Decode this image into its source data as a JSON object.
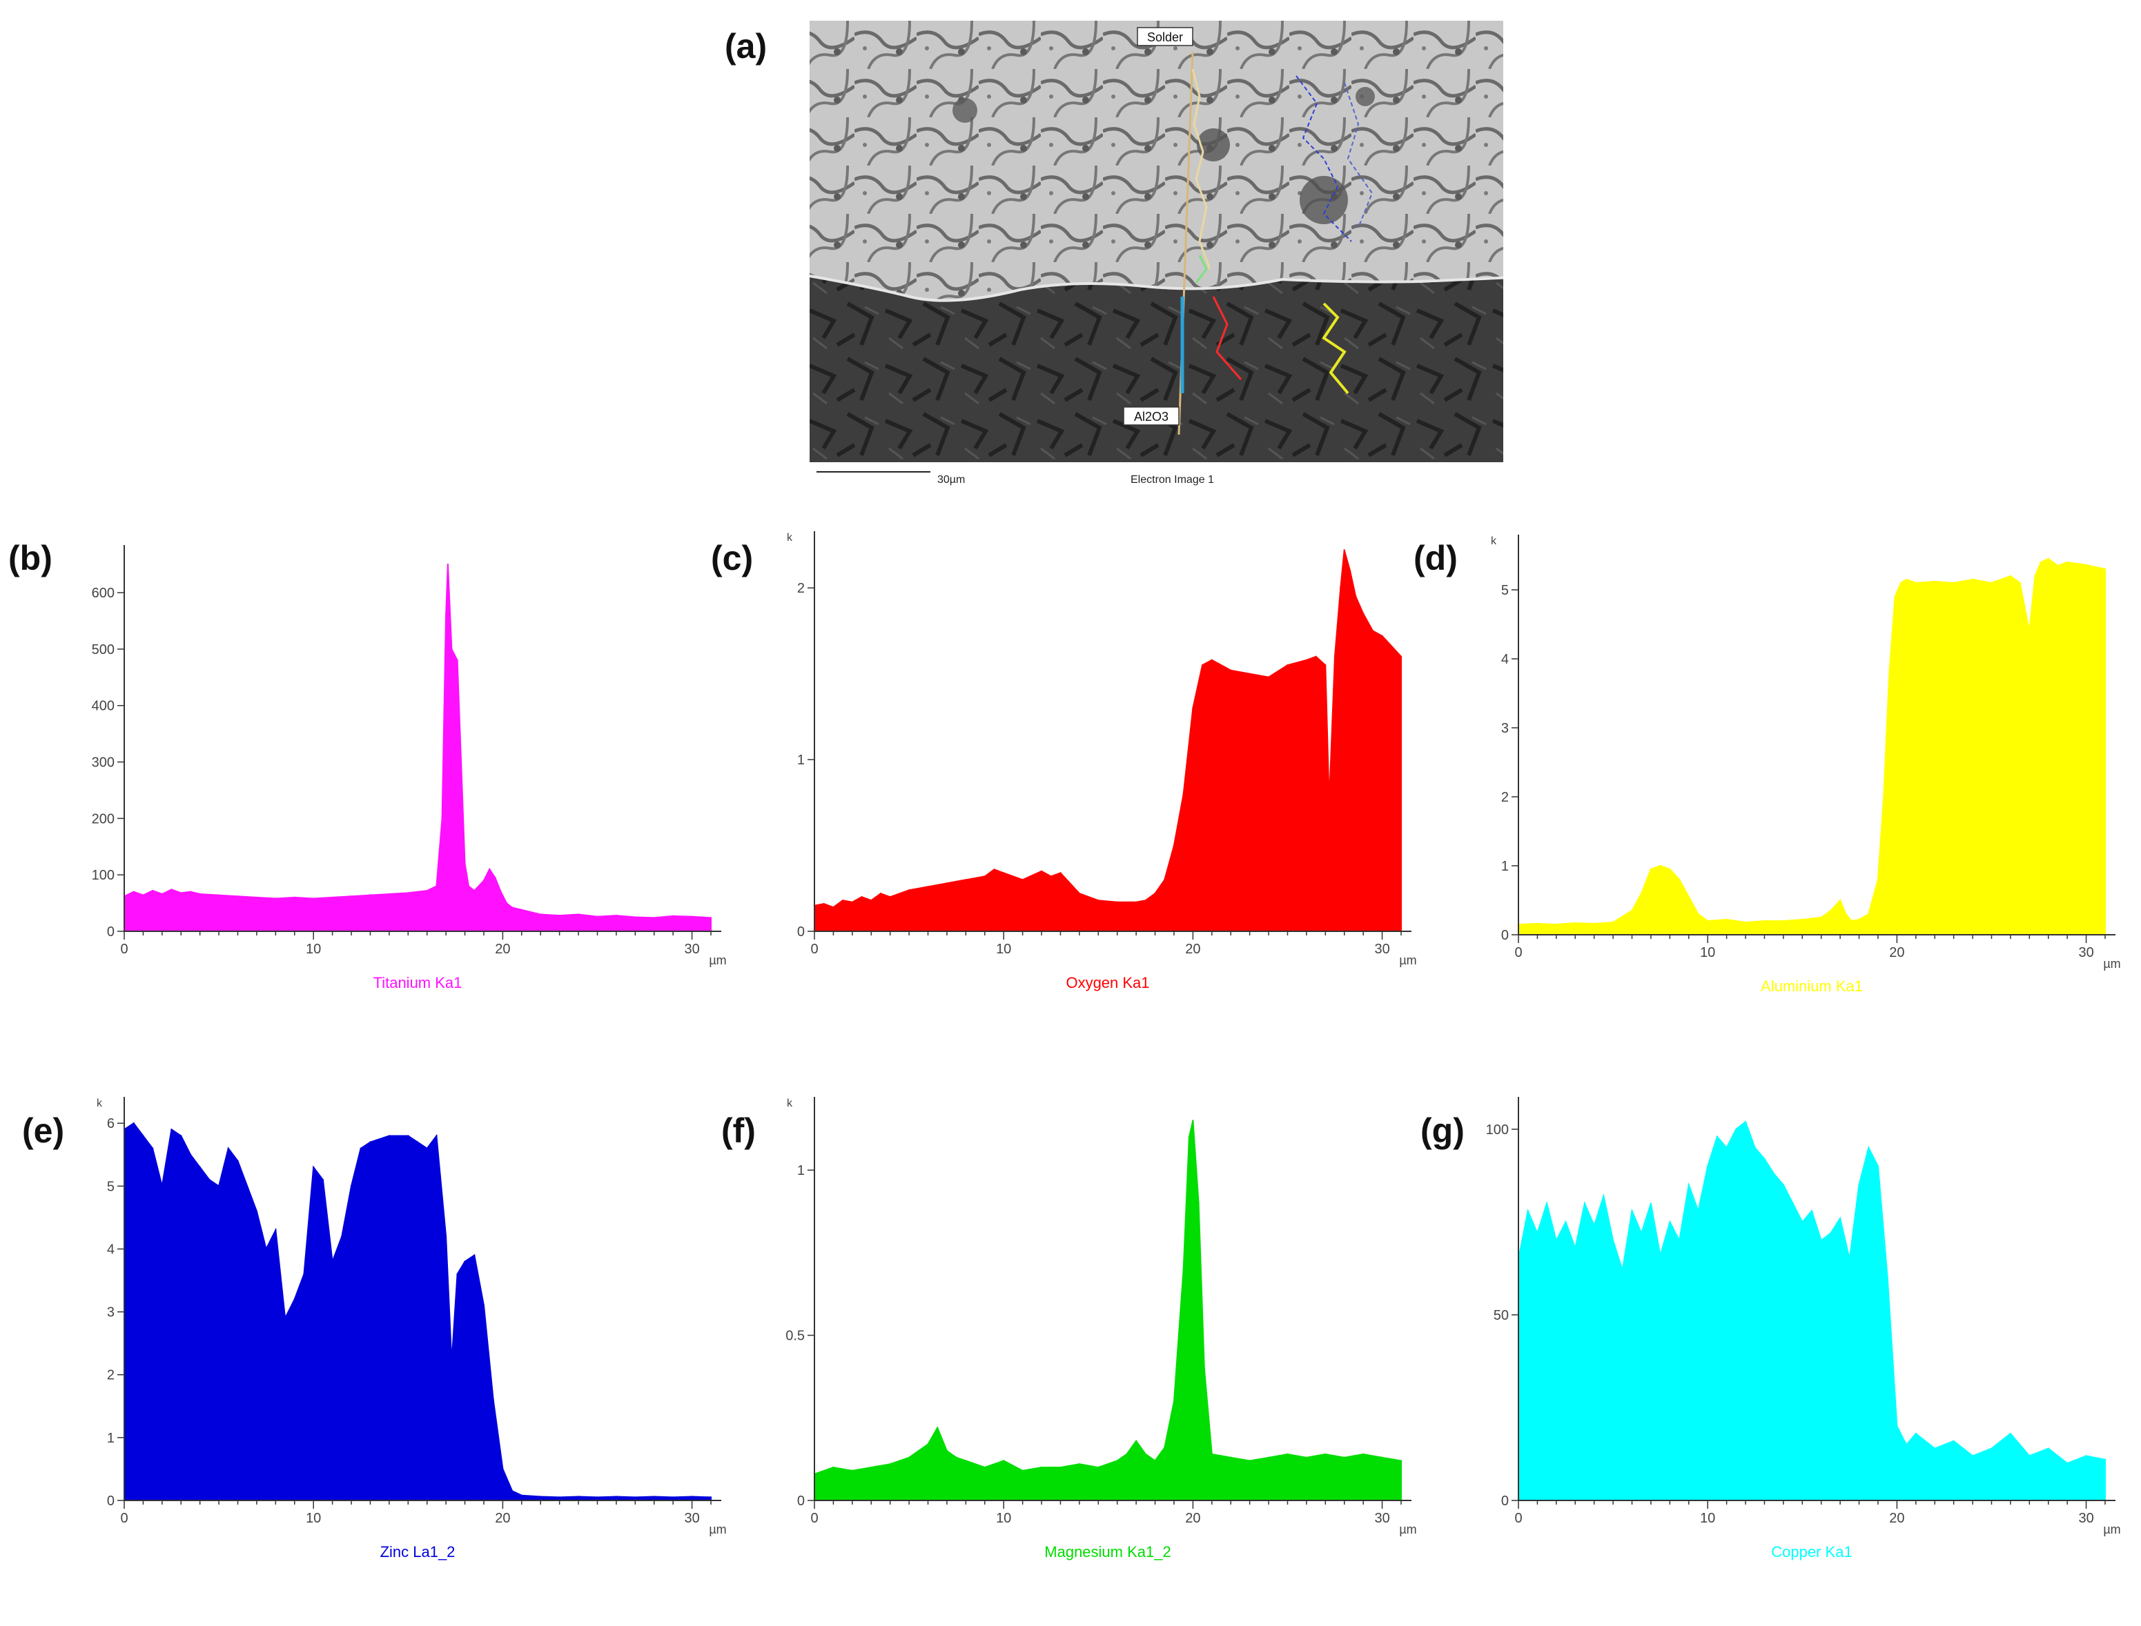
{
  "figure": {
    "panel_a": {
      "letter": "(a)",
      "label_top": "Solder",
      "label_bottom": "Al2O3",
      "scale_text": "30µm",
      "image_title": "Electron Image 1",
      "colors": {
        "scan_line": "#d9b77a",
        "mg_trace": "#7ee07e",
        "o_trace": "#ff2a2a",
        "al_trace": "#e8e824",
        "zn_trace": "#2d3fd6",
        "cu_trace": "#2aa3d8"
      }
    }
  },
  "chart_data": [
    {
      "panel": "(b)",
      "type": "area",
      "color": "#ff10ff",
      "legend": "Titanium Ka1",
      "xlabel": "µm",
      "ylabel_mult": "",
      "xlim": [
        0,
        31
      ],
      "ylim": [
        0,
        660
      ],
      "xticks": [
        0,
        10,
        20,
        30
      ],
      "yticks": [
        0,
        100,
        200,
        300,
        400,
        500,
        600
      ],
      "yticklabels": [
        "0",
        "100",
        "200",
        "300",
        "400",
        "500",
        "600"
      ],
      "x": [
        0,
        0.5,
        1,
        1.5,
        2,
        2.5,
        3,
        3.5,
        4,
        5,
        6,
        7,
        8,
        9,
        10,
        11,
        12,
        13,
        14,
        15,
        15.5,
        16,
        16.5,
        16.8,
        17,
        17.1,
        17.3,
        17.6,
        17.8,
        18,
        18.2,
        18.5,
        19,
        19.3,
        19.6,
        19.9,
        20.2,
        20.5,
        21,
        22,
        23,
        24,
        25,
        26,
        27,
        28,
        29,
        30,
        31
      ],
      "values": [
        62,
        70,
        64,
        72,
        66,
        74,
        68,
        70,
        66,
        64,
        62,
        60,
        58,
        60,
        58,
        60,
        62,
        64,
        66,
        68,
        70,
        72,
        80,
        200,
        560,
        650,
        500,
        480,
        300,
        120,
        80,
        72,
        90,
        110,
        95,
        70,
        50,
        42,
        38,
        30,
        28,
        30,
        26,
        28,
        25,
        24,
        27,
        26,
        24
      ]
    },
    {
      "panel": "(c)",
      "type": "area",
      "color": "#ff0000",
      "legend": "Oxygen Ka1",
      "xlabel": "µm",
      "ylabel_mult": "k",
      "xlim": [
        0,
        31
      ],
      "ylim": [
        0,
        2.25
      ],
      "xticks": [
        0,
        10,
        20,
        30
      ],
      "yticks": [
        0,
        1,
        2
      ],
      "yticklabels": [
        "0",
        "1",
        "2"
      ],
      "x": [
        0,
        0.5,
        1,
        1.5,
        2,
        2.5,
        3,
        3.5,
        4,
        5,
        6,
        7,
        8,
        9,
        9.5,
        10,
        11,
        12,
        12.5,
        13,
        14,
        15,
        16,
        17,
        17.5,
        18,
        18.5,
        19,
        19.5,
        20,
        20.5,
        21,
        22,
        23,
        24,
        25,
        26,
        26.5,
        27,
        27.2,
        27.5,
        27.8,
        28,
        28.3,
        28.6,
        29,
        29.5,
        30,
        30.5,
        31
      ],
      "values": [
        0.15,
        0.16,
        0.14,
        0.18,
        0.17,
        0.2,
        0.18,
        0.22,
        0.2,
        0.24,
        0.26,
        0.28,
        0.3,
        0.32,
        0.36,
        0.34,
        0.3,
        0.35,
        0.32,
        0.34,
        0.22,
        0.18,
        0.17,
        0.17,
        0.18,
        0.22,
        0.3,
        0.5,
        0.8,
        1.3,
        1.55,
        1.58,
        1.52,
        1.5,
        1.48,
        1.55,
        1.58,
        1.6,
        1.55,
        0.75,
        1.6,
        2.0,
        2.22,
        2.1,
        1.95,
        1.85,
        1.75,
        1.72,
        1.66,
        1.6
      ]
    },
    {
      "panel": "(d)",
      "type": "area",
      "color": "#ffff00",
      "legend": "Aluminium Ka1",
      "xlabel": "µm",
      "ylabel_mult": "k",
      "xlim": [
        0,
        31
      ],
      "ylim": [
        0,
        5.6
      ],
      "xticks": [
        0,
        10,
        20,
        30
      ],
      "yticks": [
        0,
        1,
        2,
        3,
        4,
        5
      ],
      "yticklabels": [
        "0",
        "1",
        "2",
        "3",
        "4",
        "5"
      ],
      "x": [
        0,
        1,
        2,
        3,
        4,
        5,
        6,
        6.5,
        7,
        7.5,
        8,
        8.5,
        9,
        9.5,
        10,
        11,
        12,
        13,
        14,
        15,
        16,
        16.5,
        17,
        17.3,
        17.6,
        18,
        18.5,
        19,
        19.3,
        19.6,
        19.9,
        20.2,
        20.5,
        21,
        22,
        23,
        24,
        25,
        26,
        26.5,
        27,
        27.3,
        27.6,
        28,
        28.5,
        29,
        29.5,
        30,
        31
      ],
      "values": [
        0.15,
        0.16,
        0.15,
        0.17,
        0.16,
        0.18,
        0.35,
        0.6,
        0.95,
        1.0,
        0.95,
        0.8,
        0.55,
        0.3,
        0.2,
        0.22,
        0.18,
        0.2,
        0.2,
        0.22,
        0.25,
        0.35,
        0.5,
        0.3,
        0.2,
        0.22,
        0.3,
        0.8,
        2.0,
        3.8,
        4.9,
        5.1,
        5.15,
        5.1,
        5.12,
        5.1,
        5.15,
        5.1,
        5.2,
        5.1,
        4.4,
        5.2,
        5.4,
        5.45,
        5.35,
        5.4,
        5.38,
        5.36,
        5.3
      ]
    },
    {
      "panel": "(e)",
      "type": "area",
      "color": "#0000dd",
      "legend": "Zinc La1_2",
      "xlabel": "µm",
      "ylabel_mult": "k",
      "xlim": [
        0,
        31
      ],
      "ylim": [
        0,
        6.2
      ],
      "xticks": [
        0,
        10,
        20,
        30
      ],
      "yticks": [
        0,
        1,
        2,
        3,
        4,
        5,
        6
      ],
      "yticklabels": [
        "0",
        "1",
        "2",
        "3",
        "4",
        "5",
        "6"
      ],
      "x": [
        0,
        0.5,
        1,
        1.5,
        2,
        2.5,
        3,
        3.5,
        4,
        4.5,
        5,
        5.5,
        6,
        6.5,
        7,
        7.5,
        8,
        8.5,
        9,
        9.5,
        10,
        10.5,
        11,
        11.5,
        12,
        12.5,
        13,
        14,
        15,
        15.5,
        16,
        16.5,
        17,
        17.3,
        17.6,
        18,
        18.5,
        19,
        19.5,
        20,
        20.5,
        21,
        22,
        23,
        24,
        25,
        26,
        27,
        28,
        29,
        30,
        31
      ],
      "values": [
        5.9,
        6.0,
        5.8,
        5.6,
        5.0,
        5.9,
        5.8,
        5.5,
        5.3,
        5.1,
        5.0,
        5.6,
        5.4,
        5.0,
        4.6,
        4.0,
        4.3,
        2.9,
        3.2,
        3.6,
        5.3,
        5.1,
        3.8,
        4.2,
        5.0,
        5.6,
        5.7,
        5.8,
        5.8,
        5.7,
        5.6,
        5.8,
        4.2,
        2.2,
        3.6,
        3.8,
        3.9,
        3.1,
        1.6,
        0.5,
        0.15,
        0.08,
        0.06,
        0.05,
        0.06,
        0.05,
        0.06,
        0.05,
        0.06,
        0.05,
        0.06,
        0.05
      ]
    },
    {
      "panel": "(f)",
      "type": "area",
      "color": "#00dd00",
      "legend": "Magnesium Ka1_2",
      "xlabel": "µm",
      "ylabel_mult": "k",
      "xlim": [
        0,
        31
      ],
      "ylim": [
        0,
        1.18
      ],
      "xticks": [
        0,
        10,
        20,
        30
      ],
      "yticks": [
        0,
        0.5,
        1
      ],
      "yticklabels": [
        "0",
        "0.5",
        "1"
      ],
      "x": [
        0,
        1,
        2,
        3,
        4,
        5,
        5.5,
        6,
        6.5,
        7,
        7.5,
        8,
        9,
        10,
        11,
        12,
        13,
        14,
        15,
        16,
        16.5,
        17,
        17.5,
        18,
        18.5,
        19,
        19.5,
        19.8,
        20,
        20.3,
        20.6,
        21,
        22,
        23,
        24,
        25,
        26,
        27,
        28,
        29,
        30,
        31
      ],
      "values": [
        0.08,
        0.1,
        0.09,
        0.1,
        0.11,
        0.13,
        0.15,
        0.17,
        0.22,
        0.15,
        0.13,
        0.12,
        0.1,
        0.12,
        0.09,
        0.1,
        0.1,
        0.11,
        0.1,
        0.12,
        0.14,
        0.18,
        0.14,
        0.12,
        0.16,
        0.3,
        0.7,
        1.1,
        1.15,
        0.9,
        0.4,
        0.14,
        0.13,
        0.12,
        0.13,
        0.14,
        0.13,
        0.14,
        0.13,
        0.14,
        0.13,
        0.12
      ]
    },
    {
      "panel": "(g)",
      "type": "area",
      "color": "#00ffff",
      "legend": "Copper Ka1",
      "xlabel": "µm",
      "ylabel_mult": "",
      "xlim": [
        0,
        31
      ],
      "ylim": [
        0,
        105
      ],
      "xticks": [
        0,
        10,
        20,
        30
      ],
      "yticks": [
        0,
        50,
        100
      ],
      "yticklabels": [
        "0",
        "50",
        "100"
      ],
      "x": [
        0,
        0.5,
        1,
        1.5,
        2,
        2.5,
        3,
        3.5,
        4,
        4.5,
        5,
        5.5,
        6,
        6.5,
        7,
        7.5,
        8,
        8.5,
        9,
        9.5,
        10,
        10.5,
        11,
        11.5,
        12,
        12.5,
        13,
        13.5,
        14,
        14.5,
        15,
        15.5,
        16,
        16.5,
        17,
        17.5,
        18,
        18.5,
        19,
        19.5,
        20,
        20.5,
        21,
        22,
        23,
        24,
        25,
        26,
        27,
        28,
        29,
        30,
        31
      ],
      "values": [
        65,
        78,
        72,
        80,
        70,
        75,
        68,
        80,
        74,
        82,
        70,
        62,
        78,
        72,
        80,
        66,
        75,
        70,
        85,
        78,
        90,
        98,
        95,
        100,
        102,
        95,
        92,
        88,
        85,
        80,
        75,
        78,
        70,
        72,
        76,
        65,
        85,
        95,
        90,
        60,
        20,
        15,
        18,
        14,
        16,
        12,
        14,
        18,
        12,
        14,
        10,
        12,
        11
      ]
    }
  ]
}
